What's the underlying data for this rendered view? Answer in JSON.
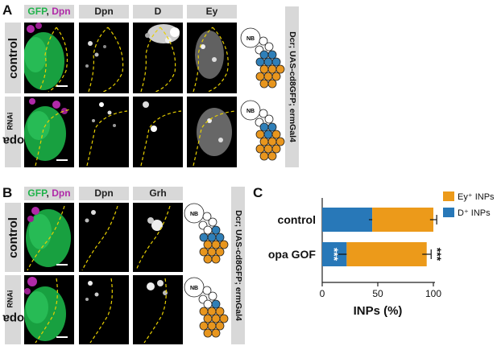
{
  "panels": {
    "A": {
      "letter": "A",
      "headers": {
        "gfp": "GFP",
        "comma": ",",
        "dpn_merge": "Dpn",
        "dpn": "Dpn",
        "d": "D",
        "ey": "Ey"
      },
      "rows": [
        {
          "label": "control",
          "sup": ""
        },
        {
          "label": "opa",
          "sup": "RNAi"
        }
      ],
      "genotype": "Dcr; UAS-cd8GFP; ermGal4"
    },
    "B": {
      "letter": "B",
      "headers": {
        "gfp": "GFP",
        "comma": ",",
        "dpn_merge": "Dpn",
        "dpn": "Dpn",
        "grh": "Grh"
      },
      "rows": [
        {
          "label": "control",
          "sup": ""
        },
        {
          "label": "opa",
          "sup": "RNAi"
        }
      ],
      "genotype": "Dcr; UAS-cd8GFP; ermGal4"
    },
    "C": {
      "letter": "C"
    }
  },
  "lineage_label": "NB",
  "colors": {
    "gfp": "#1fb34a",
    "dpn": "#b02aa8",
    "d_cells": "#2f7fb8",
    "ey_cells": "#e8961e",
    "header_bg": "#d8d8d8",
    "dashed_outline": "#e8d000"
  },
  "chart_data": {
    "type": "bar",
    "orientation": "horizontal",
    "stacked": true,
    "categories": [
      "control",
      "opa GOF"
    ],
    "series": [
      {
        "name": "D⁺ INPs",
        "color": "#2878b8",
        "values": [
          45,
          22
        ],
        "errors": [
          3,
          9
        ]
      },
      {
        "name": "Ey⁺ INPs",
        "color": "#ec9a1a",
        "values": [
          55,
          72
        ],
        "errors": [
          3,
          4
        ]
      }
    ],
    "xlabel": "INPs (%)",
    "xlim": [
      0,
      100
    ],
    "xticks": [
      0,
      50,
      100
    ],
    "annotations": [
      "***",
      "***"
    ],
    "legend_position": "top-right"
  }
}
